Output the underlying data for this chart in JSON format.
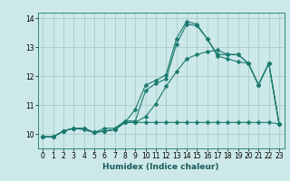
{
  "title": "",
  "xlabel": "Humidex (Indice chaleur)",
  "ylabel": "",
  "bg_color": "#cce8e8",
  "grid_color": "#aacccc",
  "line_color": "#1a7a6e",
  "xlim": [
    -0.5,
    23.5
  ],
  "ylim": [
    9.5,
    14.2
  ],
  "yticks": [
    10,
    11,
    12,
    13
  ],
  "ytick_extra": 14,
  "xticks": [
    0,
    1,
    2,
    3,
    4,
    5,
    6,
    7,
    8,
    9,
    10,
    11,
    12,
    13,
    14,
    15,
    16,
    17,
    18,
    19,
    20,
    21,
    22,
    23
  ],
  "line1_x": [
    0,
    1,
    2,
    3,
    4,
    5,
    6,
    7,
    8,
    9,
    10,
    11,
    12,
    13,
    14,
    15,
    16,
    17,
    18,
    19,
    20,
    21,
    22,
    23
  ],
  "line1_y": [
    9.9,
    9.9,
    10.1,
    10.2,
    10.2,
    10.05,
    10.1,
    10.15,
    10.4,
    10.4,
    10.4,
    10.4,
    10.4,
    10.4,
    10.4,
    10.4,
    10.4,
    10.4,
    10.4,
    10.4,
    10.4,
    10.4,
    10.4,
    10.35
  ],
  "line2_x": [
    0,
    1,
    2,
    3,
    4,
    5,
    6,
    7,
    8,
    9,
    10,
    11,
    12,
    13,
    14,
    15,
    16,
    17,
    18,
    19,
    20,
    21,
    22,
    23
  ],
  "line2_y": [
    9.9,
    9.9,
    10.1,
    10.2,
    10.2,
    10.05,
    10.2,
    10.2,
    10.45,
    10.45,
    11.5,
    11.75,
    11.9,
    13.1,
    13.8,
    13.75,
    13.3,
    12.7,
    12.6,
    12.5,
    12.45,
    11.7,
    12.45,
    10.35
  ],
  "line3_x": [
    0,
    1,
    2,
    3,
    4,
    5,
    6,
    7,
    8,
    9,
    10,
    11,
    12,
    13,
    14,
    15,
    16,
    17,
    18,
    19,
    20,
    21,
    22,
    23
  ],
  "line3_y": [
    9.9,
    9.9,
    10.1,
    10.2,
    10.2,
    10.05,
    10.1,
    10.15,
    10.4,
    10.85,
    11.7,
    11.85,
    12.05,
    13.3,
    13.9,
    13.8,
    13.3,
    12.75,
    12.75,
    12.75,
    12.45,
    11.7,
    12.45,
    10.35
  ],
  "line4_x": [
    0,
    1,
    2,
    3,
    4,
    5,
    6,
    7,
    8,
    9,
    10,
    11,
    12,
    13,
    14,
    15,
    16,
    17,
    18,
    19,
    20,
    21,
    22,
    23
  ],
  "line4_y": [
    9.9,
    9.9,
    10.1,
    10.2,
    10.15,
    10.05,
    10.1,
    10.15,
    10.4,
    10.4,
    10.6,
    11.05,
    11.65,
    12.15,
    12.6,
    12.75,
    12.85,
    12.9,
    12.75,
    12.75,
    12.45,
    11.7,
    12.45,
    10.35
  ],
  "marker_size": 2.5,
  "linewidth": 0.8,
  "tick_fontsize": 5.5,
  "xlabel_fontsize": 6.5
}
